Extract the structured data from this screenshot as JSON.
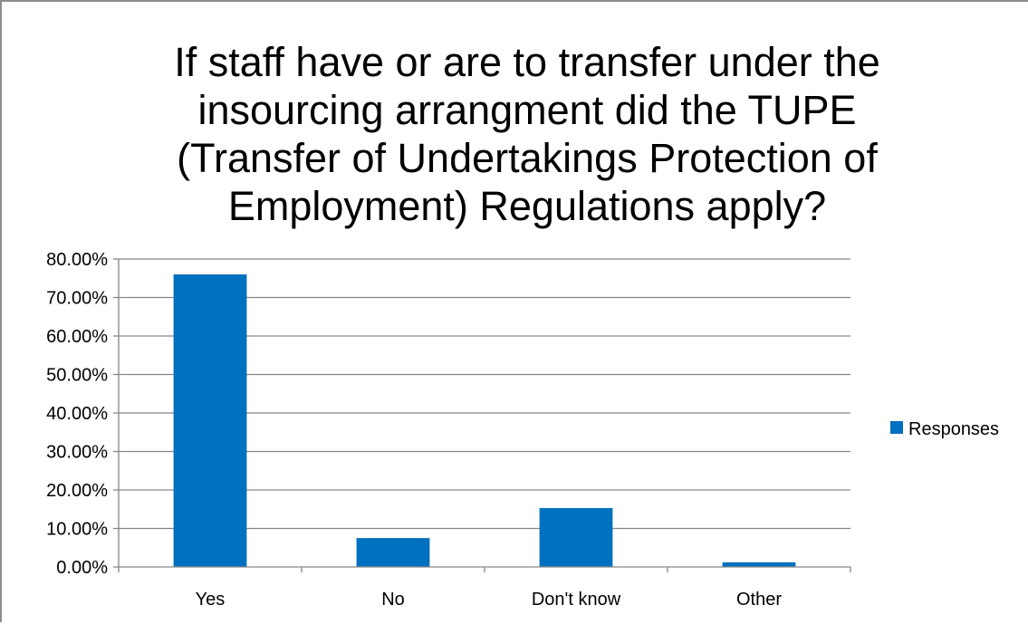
{
  "chart_data": {
    "type": "bar",
    "title_lines": [
      "If staff have or are to transfer under the",
      "insourcing arrangment did the TUPE",
      "(Transfer of Undertakings Protection of",
      "Employment) Regulations apply?"
    ],
    "categories": [
      "Yes",
      "No",
      "Don't know",
      "Other"
    ],
    "series": [
      {
        "name": "Responses",
        "values": [
          0.76,
          0.075,
          0.153,
          0.012
        ],
        "color": "#0070c0"
      }
    ],
    "ylim": [
      0,
      0.8
    ],
    "yticks": [
      0,
      0.1,
      0.2,
      0.3,
      0.4,
      0.5,
      0.6,
      0.7,
      0.8
    ],
    "ytick_labels": [
      "0.00%",
      "10.00%",
      "20.00%",
      "30.00%",
      "40.00%",
      "50.00%",
      "60.00%",
      "70.00%",
      "80.00%"
    ],
    "grid": true,
    "gridline_color": "#868686",
    "legend_position": "right"
  }
}
